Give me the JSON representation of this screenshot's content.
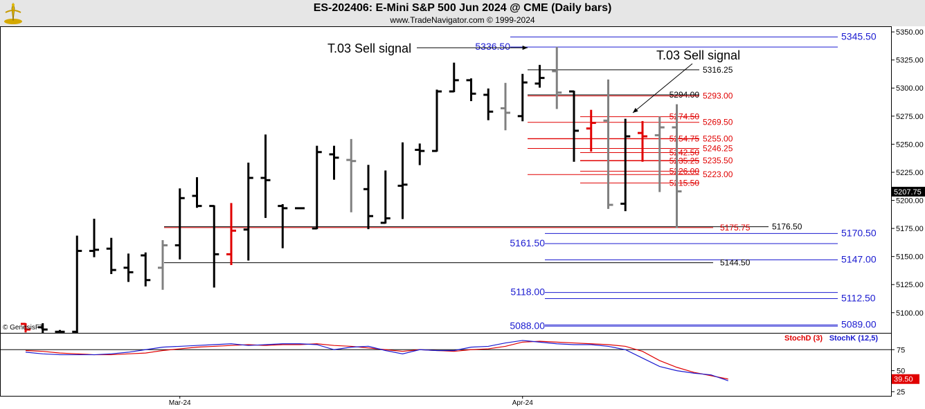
{
  "header": {
    "title": "ES-202406:  E-Mini S&P 500 Jun 2024 @ CME  (Daily bars)",
    "subtitle": "www.TradeNavigator.com © 1999-2024"
  },
  "copyright": "© GenesisFT",
  "colors": {
    "blue": "#1a1ad0",
    "red": "#e00000",
    "black": "#000000",
    "gray": "#808080",
    "header_bg": "#e6e6e6"
  },
  "chart_data": [
    {
      "type": "ohlc",
      "title": "ES-202406:  E-Mini S&P 500 Jun 2024 @ CME  (Daily bars)",
      "ylim": [
        5082,
        5355
      ],
      "y_ticks": [
        5100,
        5125,
        5150,
        5175,
        5200,
        5225,
        5250,
        5275,
        5300,
        5325,
        5350
      ],
      "y_tick_labels": [
        "5100.00",
        "5125.00",
        "5150.00",
        "5175.00",
        "5200.00",
        "5225.00",
        "5250.00",
        "5275.00",
        "5300.00",
        "5325.00",
        "5350.00"
      ],
      "x_labels": [
        {
          "label": "Mar-24",
          "index": 9
        },
        {
          "label": "Apr-24",
          "index": 29
        }
      ],
      "last_price": {
        "value": 5207.75,
        "label": "5207.75"
      },
      "bars": [
        {
          "o": 5090,
          "h": 5090,
          "l": 5083,
          "c": 5085,
          "color": "red"
        },
        {
          "o": 5087,
          "h": 5090,
          "l": 5082,
          "c": 5085,
          "color": "black"
        },
        {
          "o": 5083,
          "h": 5084,
          "l": 5083,
          "c": 5083,
          "color": "black"
        },
        {
          "o": 5083,
          "h": 5168,
          "l": 5082,
          "c": 5155,
          "color": "black"
        },
        {
          "o": 5155,
          "h": 5183,
          "l": 5150,
          "c": 5156,
          "color": "black"
        },
        {
          "o": 5157,
          "h": 5166,
          "l": 5135,
          "c": 5138,
          "color": "black"
        },
        {
          "o": 5140,
          "h": 5152,
          "l": 5128,
          "c": 5136,
          "color": "black"
        },
        {
          "o": 5151,
          "h": 5153,
          "l": 5124,
          "c": 5129,
          "color": "black"
        },
        {
          "o": 5140,
          "h": 5164,
          "l": 5121,
          "c": 5160,
          "color": "gray"
        },
        {
          "o": 5160,
          "h": 5210,
          "l": 5148,
          "c": 5202,
          "color": "black"
        },
        {
          "o": 5204,
          "h": 5220,
          "l": 5194,
          "c": 5195,
          "color": "black"
        },
        {
          "o": 5195,
          "h": 5195,
          "l": 5123,
          "c": 5152,
          "color": "black"
        },
        {
          "o": 5152,
          "h": 5197,
          "l": 5143,
          "c": 5173,
          "color": "red"
        },
        {
          "o": 5174,
          "h": 5233,
          "l": 5147,
          "c": 5220,
          "color": "black"
        },
        {
          "o": 5220,
          "h": 5258,
          "l": 5185,
          "c": 5218,
          "color": "black"
        },
        {
          "o": 5195,
          "h": 5196,
          "l": 5158,
          "c": 5193,
          "color": "black"
        },
        {
          "o": 5193,
          "h": 5193,
          "l": 5193,
          "c": 5193,
          "color": "black"
        },
        {
          "o": 5175,
          "h": 5248,
          "l": 5175,
          "c": 5243,
          "color": "black"
        },
        {
          "o": 5241,
          "h": 5248,
          "l": 5219,
          "c": 5238,
          "color": "black"
        },
        {
          "o": 5236,
          "h": 5254,
          "l": 5190,
          "c": 5235,
          "color": "gray"
        },
        {
          "o": 5210,
          "h": 5231,
          "l": 5175,
          "c": 5186,
          "color": "black"
        },
        {
          "o": 5180,
          "h": 5226,
          "l": 5180,
          "c": 5184,
          "color": "black"
        },
        {
          "o": 5213,
          "h": 5251,
          "l": 5184,
          "c": 5214,
          "color": "black"
        },
        {
          "o": 5245,
          "h": 5250,
          "l": 5232,
          "c": 5244,
          "color": "black"
        },
        {
          "o": 5244,
          "h": 5298,
          "l": 5244,
          "c": 5297,
          "color": "black"
        },
        {
          "o": 5297,
          "h": 5322,
          "l": 5297,
          "c": 5307,
          "color": "black"
        },
        {
          "o": 5307,
          "h": 5308,
          "l": 5289,
          "c": 5295,
          "color": "black"
        },
        {
          "o": 5294,
          "h": 5299,
          "l": 5272,
          "c": 5279,
          "color": "black"
        },
        {
          "o": 5282,
          "h": 5304,
          "l": 5263,
          "c": 5278,
          "color": "gray"
        },
        {
          "o": 5275,
          "h": 5312,
          "l": 5271,
          "c": 5305,
          "color": "black"
        },
        {
          "o": 5304,
          "h": 5320,
          "l": 5301,
          "c": 5309,
          "color": "black"
        },
        {
          "o": 5315,
          "h": 5336,
          "l": 5282,
          "c": 5296,
          "color": "gray"
        },
        {
          "o": 5297,
          "h": 5297,
          "l": 5235,
          "c": 5262,
          "color": "black"
        },
        {
          "o": 5264,
          "h": 5280,
          "l": 5244,
          "c": 5269,
          "color": "red"
        },
        {
          "o": 5271,
          "h": 5307,
          "l": 5193,
          "c": 5196,
          "color": "gray"
        },
        {
          "o": 5197,
          "h": 5272,
          "l": 5191,
          "c": 5257,
          "color": "black"
        },
        {
          "o": 5260,
          "h": 5270,
          "l": 5235,
          "c": 5257,
          "color": "red"
        },
        {
          "o": 5258,
          "h": 5274,
          "l": 5208,
          "c": 5265,
          "color": "gray"
        },
        {
          "o": 5265,
          "h": 5285,
          "l": 5176,
          "c": 5208,
          "color": "gray"
        }
      ],
      "levels": [
        {
          "value": 5345.5,
          "color": "blue",
          "label": "5345.50"
        },
        {
          "value": 5336.5,
          "color": "blue",
          "label": "5336.50"
        },
        {
          "value": 5316.25,
          "color": "black",
          "label": "5316.25"
        },
        {
          "value": 5294.0,
          "color": "black",
          "label": "5294.00"
        },
        {
          "value": 5293.0,
          "color": "red",
          "label": "5293.00"
        },
        {
          "value": 5274.5,
          "color": "red",
          "label": "5274.50"
        },
        {
          "value": 5269.5,
          "color": "red",
          "label": "5269.50"
        },
        {
          "value": 5255.0,
          "color": "red",
          "label": "5255.00"
        },
        {
          "value": 5254.75,
          "color": "red",
          "label": "5254.75"
        },
        {
          "value": 5246.25,
          "color": "red",
          "label": "5246.25"
        },
        {
          "value": 5242.5,
          "color": "red",
          "label": "5242.50"
        },
        {
          "value": 5235.5,
          "color": "red",
          "label": "5235.50"
        },
        {
          "value": 5235.25,
          "color": "red",
          "label": "5235.25"
        },
        {
          "value": 5226.0,
          "color": "red",
          "label": "5226.00"
        },
        {
          "value": 5223.0,
          "color": "red",
          "label": "5223.00"
        },
        {
          "value": 5215.5,
          "color": "red",
          "label": "5215.50"
        },
        {
          "value": 5176.5,
          "color": "black",
          "label": "5176.50"
        },
        {
          "value": 5175.75,
          "color": "red",
          "label": "5175.75"
        },
        {
          "value": 5170.5,
          "color": "blue",
          "label": "5170.50"
        },
        {
          "value": 5161.5,
          "color": "blue",
          "label": "5161.50"
        },
        {
          "value": 5147.0,
          "color": "blue",
          "label": "5147.00"
        },
        {
          "value": 5144.5,
          "color": "black",
          "label": "5144.50"
        },
        {
          "value": 5118.0,
          "color": "blue",
          "label": "5118.00"
        },
        {
          "value": 5112.5,
          "color": "blue",
          "label": "5112.50"
        },
        {
          "value": 5089.0,
          "color": "blue",
          "label": "5089.00"
        },
        {
          "value": 5088.0,
          "color": "blue",
          "label": "5088.00"
        }
      ],
      "annotations": [
        {
          "text": "T.03 Sell signal",
          "points_to_bar": 31
        },
        {
          "text": "T.03 Sell signal",
          "points_to_bar": 37
        }
      ]
    },
    {
      "type": "line",
      "title": "Stochastic",
      "ylim": [
        20,
        95
      ],
      "y_ticks": [
        25,
        50,
        75
      ],
      "reference_line": 75,
      "last_value_label": "39.50",
      "series": [
        {
          "name": "StochD (3)",
          "color": "red",
          "values": [
            74,
            73,
            71,
            70,
            69,
            69,
            70,
            71,
            74,
            76,
            78,
            79,
            80,
            81,
            80,
            81,
            81,
            82,
            80,
            79,
            77,
            75,
            73,
            75,
            74,
            73,
            75,
            76,
            79,
            84,
            85,
            84,
            83,
            82,
            81,
            79,
            73,
            62,
            54,
            48,
            44,
            40
          ]
        },
        {
          "name": "StochK (12,5)",
          "color": "blue",
          "values": [
            72,
            70,
            69,
            69,
            69,
            70,
            72,
            75,
            78,
            79,
            80,
            81,
            82,
            80,
            81,
            82,
            82,
            81,
            75,
            78,
            79,
            74,
            70,
            75,
            74,
            74,
            78,
            79,
            83,
            86,
            84,
            82,
            81,
            81,
            79,
            75,
            65,
            55,
            50,
            47,
            45,
            38
          ]
        }
      ]
    }
  ]
}
